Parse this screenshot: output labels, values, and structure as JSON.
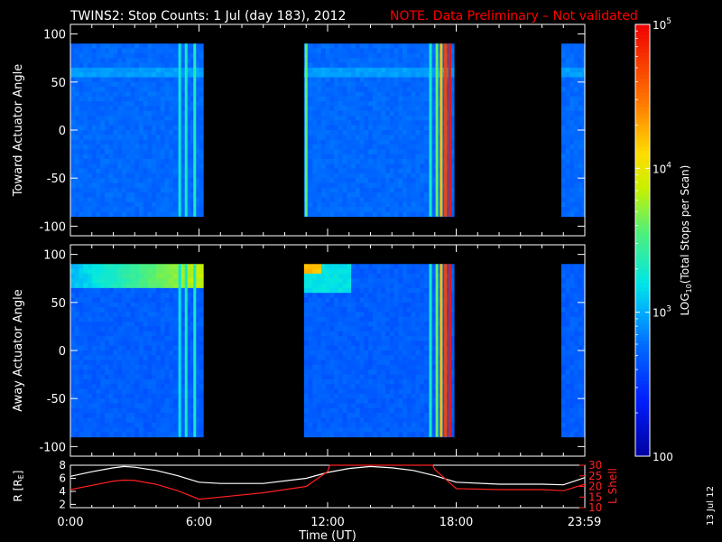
{
  "header": {
    "title": "TWINS2: Stop Counts:  1 Jul (day 183), 2012",
    "note": "NOTE. Data Preliminary – Not validated"
  },
  "footer": {
    "date_stamp": "13 Jul 12"
  },
  "colors": {
    "background": "#000000",
    "axes": "#ffffff",
    "note": "#ff0000",
    "r_line": "#ffffff",
    "lshell_line": "#ff2020"
  },
  "chart_data": [
    {
      "type": "heatmap",
      "ylabel": "Toward Actuator Angle",
      "x_unit": "hours UT",
      "xlim": [
        0,
        24
      ],
      "ylim": [
        -110,
        110
      ],
      "y_ticks": [
        100,
        50,
        0,
        -50,
        -100
      ],
      "y_extent": [
        -90,
        90
      ],
      "data_intervals": [
        [
          0,
          6.2
        ],
        [
          10.9,
          17.9
        ],
        [
          22.9,
          24
        ]
      ],
      "bright_columns": [
        {
          "x": 5.1,
          "log_value": 3.25
        },
        {
          "x": 5.4,
          "log_value": 3.3
        },
        {
          "x": 5.8,
          "log_value": 3.35
        },
        {
          "x": 11.0,
          "log_value": 3.6
        },
        {
          "x": 16.8,
          "log_value": 3.3
        },
        {
          "x": 17.1,
          "log_value": 3.6
        },
        {
          "x": 17.3,
          "log_value": 4.2
        },
        {
          "x": 17.5,
          "log_value": 4.7
        },
        {
          "x": 17.7,
          "log_value": 4.9
        }
      ],
      "base_log_value": 2.75,
      "enhanced_bands": [
        {
          "angle_range": [
            55,
            65
          ],
          "log_value": 2.95
        },
        {
          "angle_range": [
            -2,
            2
          ],
          "log_value": 2.9
        }
      ]
    },
    {
      "type": "heatmap",
      "ylabel": "Away Actuator Angle",
      "x_unit": "hours UT",
      "xlim": [
        0,
        24
      ],
      "ylim": [
        -110,
        110
      ],
      "y_ticks": [
        100,
        50,
        0,
        -50,
        -100
      ],
      "y_extent": [
        -90,
        90
      ],
      "data_intervals": [
        [
          0,
          6.2
        ],
        [
          10.9,
          17.9
        ],
        [
          22.9,
          24
        ]
      ],
      "bright_columns": [
        {
          "x": 5.1,
          "log_value": 3.2
        },
        {
          "x": 5.4,
          "log_value": 3.3
        },
        {
          "x": 5.8,
          "log_value": 3.3
        },
        {
          "x": 16.8,
          "log_value": 3.3
        },
        {
          "x": 17.1,
          "log_value": 3.6
        },
        {
          "x": 17.3,
          "log_value": 4.2
        },
        {
          "x": 17.5,
          "log_value": 4.7
        },
        {
          "x": 17.7,
          "log_value": 4.9
        }
      ],
      "base_log_value": 2.7,
      "enhanced_bands": [
        {
          "angle_range": [
            65,
            90
          ],
          "time_range": [
            0,
            6.2
          ],
          "log_value": 3.9
        },
        {
          "angle_range": [
            80,
            90
          ],
          "time_range": [
            10.9,
            11.5
          ],
          "log_value": 4.2
        },
        {
          "angle_range": [
            60,
            90
          ],
          "time_range": [
            10.9,
            13.0
          ],
          "log_value": 3.2
        },
        {
          "angle_range": [
            -2,
            2
          ],
          "log_value": 2.9
        }
      ]
    },
    {
      "type": "line",
      "xlabel": "Time (UT)",
      "x_ticks": [
        "0:00",
        "6:00",
        "12:00",
        "18:00",
        "23:59"
      ],
      "x_tick_values": [
        0,
        6,
        12,
        18,
        23.98
      ],
      "xlim": [
        0,
        24
      ],
      "left_axis": {
        "label": "R [R",
        "label_subscript": "E",
        "label_close": "]",
        "ylim": [
          1.5,
          8
        ],
        "ticks": [
          8,
          6,
          4,
          2
        ]
      },
      "right_axis": {
        "label": "L Shell",
        "ylim": [
          10,
          30
        ],
        "ticks": [
          30,
          25,
          20,
          15,
          10
        ]
      },
      "series": [
        {
          "axis": "left",
          "color": "white",
          "x": [
            0,
            1,
            2,
            2.5,
            3,
            4,
            5,
            6,
            7,
            9,
            11,
            12,
            13,
            14,
            15,
            16,
            17,
            18,
            20,
            22,
            23,
            24
          ],
          "y": [
            6.3,
            7.0,
            7.6,
            7.8,
            7.7,
            7.2,
            6.4,
            5.4,
            5.2,
            5.2,
            6.0,
            6.9,
            7.5,
            7.8,
            7.6,
            7.2,
            6.4,
            5.4,
            5.1,
            5.1,
            5.0,
            6.1
          ]
        },
        {
          "axis": "right",
          "color": "red",
          "x": [
            0,
            1,
            2,
            2.5,
            3,
            4,
            5,
            6,
            7,
            9,
            11,
            12,
            12.1,
            16.9,
            17,
            18,
            20,
            22,
            23,
            24
          ],
          "y": [
            18.5,
            20.5,
            22.5,
            23.0,
            22.8,
            21.0,
            18.0,
            14.0,
            15.0,
            17.0,
            20.0,
            27.0,
            31.0,
            31.0,
            28.0,
            19.0,
            18.5,
            18.5,
            18.0,
            21.0
          ]
        }
      ]
    }
  ],
  "colorbar": {
    "label_prefix": "LOG",
    "label_subscript": "10",
    "label_suffix": "(Total Stops per Scan)",
    "scale": "log",
    "log_range": [
      2,
      5
    ],
    "ticks": [
      {
        "log": 5,
        "base": "10",
        "exp": "5"
      },
      {
        "log": 4,
        "base": "10",
        "exp": "4"
      },
      {
        "log": 3,
        "base": "10",
        "exp": "3"
      },
      {
        "log": 2,
        "base": "100",
        "exp": ""
      }
    ]
  }
}
